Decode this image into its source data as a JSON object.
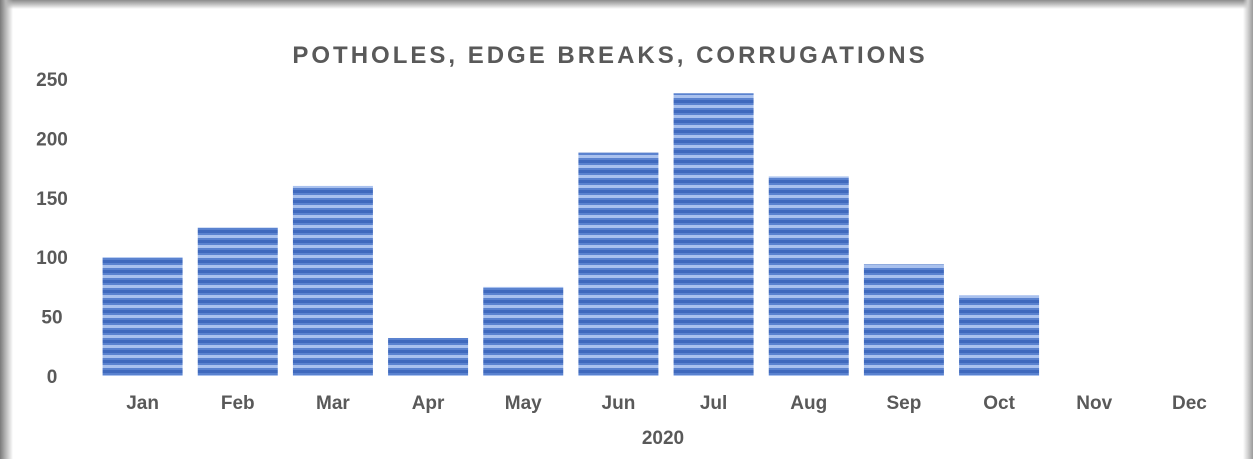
{
  "chart_data": {
    "type": "bar",
    "title": "POTHOLES, EDGE BREAKS, CORRUGATIONS",
    "xlabel": "2020",
    "ylabel": "",
    "ylim": [
      0,
      250
    ],
    "yticks": [
      0,
      50,
      100,
      150,
      200,
      250
    ],
    "categories": [
      "Jan",
      "Feb",
      "Mar",
      "Apr",
      "May",
      "Jun",
      "Jul",
      "Aug",
      "Sep",
      "Oct",
      "Nov",
      "Dec"
    ],
    "values": [
      100,
      125,
      160,
      32,
      75,
      188,
      238,
      168,
      94,
      68,
      null,
      null
    ],
    "grid": false,
    "legend": "none",
    "bar_color": "#4f7ac9",
    "bar_stripe_color": "#a9c1ee",
    "text_color": "#595959"
  }
}
